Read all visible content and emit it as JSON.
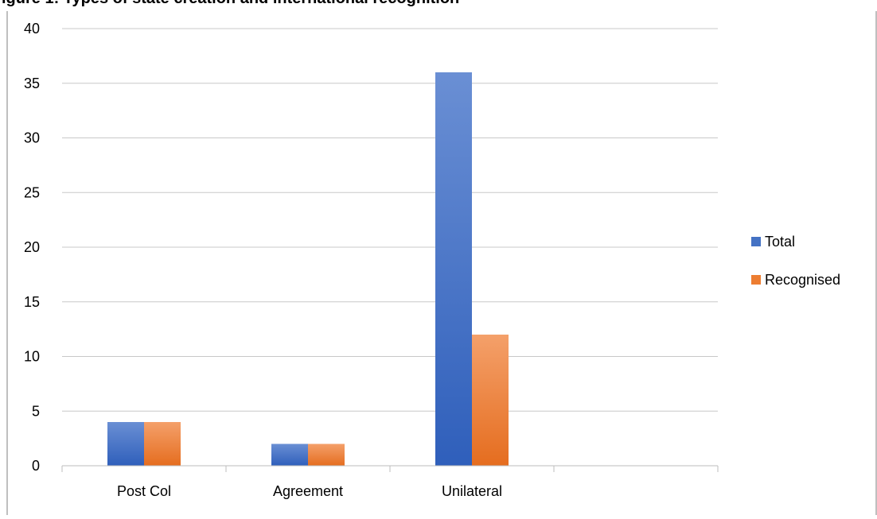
{
  "header_fragment": "igure 1: Types of state creation and international recognition",
  "chart_data": {
    "type": "bar",
    "categories": [
      "Post Col",
      "Agreement",
      "Unilateral",
      ""
    ],
    "series": [
      {
        "name": "Total",
        "values": [
          4,
          2,
          36,
          null
        ]
      },
      {
        "name": "Recognised",
        "values": [
          4,
          2,
          12,
          null
        ]
      }
    ],
    "y_ticks": [
      0,
      5,
      10,
      15,
      20,
      25,
      30,
      35,
      40
    ],
    "ylim": [
      0,
      40
    ],
    "grid": true,
    "legend_position": "right",
    "colors": {
      "total_top": "#6a8fd4",
      "total_bottom": "#2f5fbb",
      "recognised_top": "#f4a06a",
      "recognised_bottom": "#e56d1f",
      "grid": "#c8c8c8",
      "axis": "#bdbdbd",
      "frame": "#7f7f7f",
      "legend_total": "#4472c4",
      "legend_recognised": "#ed7d31"
    }
  }
}
